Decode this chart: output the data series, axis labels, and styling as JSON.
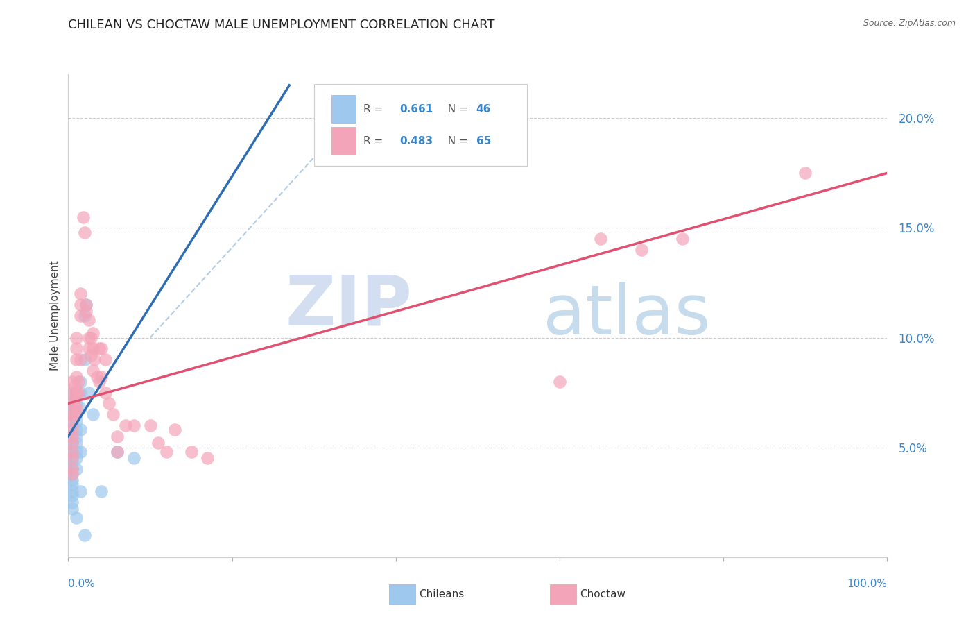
{
  "title": "CHILEAN VS CHOCTAW MALE UNEMPLOYMENT CORRELATION CHART",
  "source": "Source: ZipAtlas.com",
  "ylabel": "Male Unemployment",
  "xlim": [
    0.0,
    1.0
  ],
  "ylim": [
    0.0,
    0.22
  ],
  "yticks": [
    0.05,
    0.1,
    0.15,
    0.2
  ],
  "ytick_labels": [
    "5.0%",
    "10.0%",
    "15.0%",
    "20.0%"
  ],
  "watermark_zip": "ZIP",
  "watermark_atlas": "atlas",
  "legend_R1": "R = ",
  "legend_R1_val": "0.661",
  "legend_N1_label": "N = ",
  "legend_N1_val": "46",
  "legend_R2": "R = ",
  "legend_R2_val": "0.483",
  "legend_N2_label": "N = ",
  "legend_N2_val": "65",
  "chileans_color": "#9EC8ED",
  "choctaw_color": "#F4A4B8",
  "chileans_line_color": "#2E6DB4",
  "choctaw_line_color": "#E05070",
  "dash_color": "#A0C0E0",
  "chileans_label": "Chileans",
  "choctaw_label": "Choctaw",
  "chileans_scatter": [
    [
      0.005,
      0.075
    ],
    [
      0.005,
      0.07
    ],
    [
      0.005,
      0.068
    ],
    [
      0.005,
      0.065
    ],
    [
      0.005,
      0.062
    ],
    [
      0.005,
      0.058
    ],
    [
      0.005,
      0.055
    ],
    [
      0.005,
      0.052
    ],
    [
      0.005,
      0.05
    ],
    [
      0.005,
      0.048
    ],
    [
      0.005,
      0.045
    ],
    [
      0.005,
      0.043
    ],
    [
      0.005,
      0.04
    ],
    [
      0.005,
      0.038
    ],
    [
      0.005,
      0.035
    ],
    [
      0.005,
      0.033
    ],
    [
      0.005,
      0.03
    ],
    [
      0.005,
      0.028
    ],
    [
      0.005,
      0.025
    ],
    [
      0.005,
      0.022
    ],
    [
      0.01,
      0.075
    ],
    [
      0.01,
      0.07
    ],
    [
      0.01,
      0.065
    ],
    [
      0.01,
      0.062
    ],
    [
      0.01,
      0.058
    ],
    [
      0.01,
      0.055
    ],
    [
      0.01,
      0.052
    ],
    [
      0.01,
      0.048
    ],
    [
      0.01,
      0.045
    ],
    [
      0.01,
      0.04
    ],
    [
      0.015,
      0.08
    ],
    [
      0.015,
      0.075
    ],
    [
      0.015,
      0.068
    ],
    [
      0.015,
      0.058
    ],
    [
      0.015,
      0.048
    ],
    [
      0.02,
      0.11
    ],
    [
      0.02,
      0.09
    ],
    [
      0.022,
      0.115
    ],
    [
      0.025,
      0.075
    ],
    [
      0.03,
      0.065
    ],
    [
      0.06,
      0.048
    ],
    [
      0.08,
      0.045
    ],
    [
      0.015,
      0.03
    ],
    [
      0.04,
      0.03
    ],
    [
      0.01,
      0.018
    ],
    [
      0.02,
      0.01
    ]
  ],
  "choctaw_scatter": [
    [
      0.005,
      0.08
    ],
    [
      0.005,
      0.075
    ],
    [
      0.005,
      0.07
    ],
    [
      0.005,
      0.065
    ],
    [
      0.005,
      0.062
    ],
    [
      0.005,
      0.058
    ],
    [
      0.005,
      0.055
    ],
    [
      0.005,
      0.052
    ],
    [
      0.005,
      0.048
    ],
    [
      0.005,
      0.045
    ],
    [
      0.005,
      0.04
    ],
    [
      0.005,
      0.038
    ],
    [
      0.008,
      0.078
    ],
    [
      0.008,
      0.072
    ],
    [
      0.008,
      0.068
    ],
    [
      0.008,
      0.065
    ],
    [
      0.01,
      0.1
    ],
    [
      0.01,
      0.095
    ],
    [
      0.01,
      0.09
    ],
    [
      0.01,
      0.082
    ],
    [
      0.01,
      0.075
    ],
    [
      0.01,
      0.068
    ],
    [
      0.012,
      0.08
    ],
    [
      0.012,
      0.075
    ],
    [
      0.015,
      0.12
    ],
    [
      0.015,
      0.115
    ],
    [
      0.015,
      0.11
    ],
    [
      0.015,
      0.09
    ],
    [
      0.018,
      0.155
    ],
    [
      0.02,
      0.148
    ],
    [
      0.022,
      0.115
    ],
    [
      0.022,
      0.112
    ],
    [
      0.025,
      0.108
    ],
    [
      0.025,
      0.1
    ],
    [
      0.025,
      0.095
    ],
    [
      0.028,
      0.1
    ],
    [
      0.028,
      0.092
    ],
    [
      0.03,
      0.102
    ],
    [
      0.03,
      0.095
    ],
    [
      0.03,
      0.085
    ],
    [
      0.032,
      0.09
    ],
    [
      0.035,
      0.082
    ],
    [
      0.038,
      0.095
    ],
    [
      0.038,
      0.08
    ],
    [
      0.04,
      0.095
    ],
    [
      0.04,
      0.082
    ],
    [
      0.045,
      0.09
    ],
    [
      0.045,
      0.075
    ],
    [
      0.05,
      0.07
    ],
    [
      0.055,
      0.065
    ],
    [
      0.06,
      0.055
    ],
    [
      0.06,
      0.048
    ],
    [
      0.07,
      0.06
    ],
    [
      0.08,
      0.06
    ],
    [
      0.1,
      0.06
    ],
    [
      0.11,
      0.052
    ],
    [
      0.12,
      0.048
    ],
    [
      0.13,
      0.058
    ],
    [
      0.15,
      0.048
    ],
    [
      0.17,
      0.045
    ],
    [
      0.6,
      0.08
    ],
    [
      0.65,
      0.145
    ],
    [
      0.7,
      0.14
    ],
    [
      0.75,
      0.145
    ],
    [
      0.9,
      0.175
    ]
  ],
  "blue_line_x": [
    0.0,
    0.27
  ],
  "blue_line_y": [
    0.055,
    0.215
  ],
  "pink_line_x": [
    0.0,
    1.0
  ],
  "pink_line_y": [
    0.07,
    0.175
  ],
  "dash_line_x": [
    0.1,
    0.38
  ],
  "dash_line_y": [
    0.1,
    0.215
  ]
}
